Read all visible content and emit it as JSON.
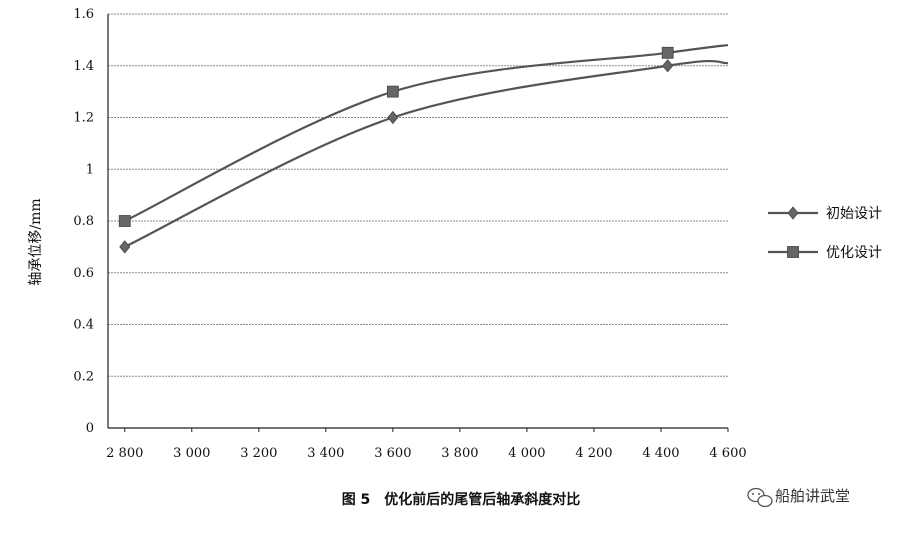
{
  "chart_data": {
    "type": "line",
    "ylabel": "轴承位移/mm",
    "xlim": [
      2750,
      4600
    ],
    "ylim": [
      0,
      1.6
    ],
    "x_ticks": [
      2800,
      3000,
      3200,
      3400,
      3600,
      3800,
      4000,
      4200,
      4400,
      4600
    ],
    "x_tick_labels": [
      "2 800",
      "3 000",
      "3 200",
      "3 400",
      "3 600",
      "3 800",
      "4 000",
      "4 200",
      "4 400",
      "4 600"
    ],
    "y_ticks": [
      0,
      0.2,
      0.4,
      0.6,
      0.8,
      1,
      1.2,
      1.4,
      1.6
    ],
    "y_tick_labels": [
      "0",
      "0.2",
      "0.4",
      "0.6",
      "0.8",
      "1",
      "1.2",
      "1.4",
      "1.6"
    ],
    "grid": true,
    "legend_position": "right",
    "series": [
      {
        "name": "初始设计",
        "marker": "diamond",
        "x": [
          2800,
          3600,
          4420
        ],
        "y": [
          0.7,
          1.2,
          1.4
        ],
        "curve_end": [
          4600,
          1.41
        ]
      },
      {
        "name": "优化设计",
        "marker": "square",
        "x": [
          2800,
          3600,
          4420
        ],
        "y": [
          0.8,
          1.3,
          1.45
        ],
        "curve_end": [
          4600,
          1.48
        ]
      }
    ],
    "line_color": "#555555",
    "marker_color": "#666666"
  },
  "caption": "图 5　优化前后的尾管后轴承斜度对比",
  "watermark": "船舶讲武堂",
  "watermark_icon": "wechat-icon"
}
